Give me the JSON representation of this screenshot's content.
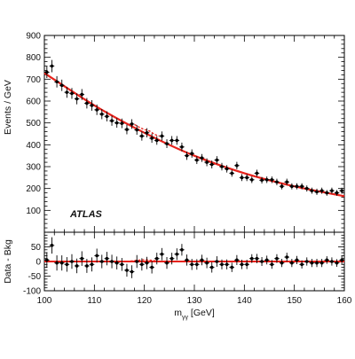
{
  "chart_data": [
    {
      "type": "scatter",
      "panel": "main",
      "atlas_label": "ATLAS",
      "xlabel_main": "m",
      "xlabel_sub": "γγ",
      "xlabel_unit": " [GeV]",
      "ylabel": "Events / GeV",
      "xlim": [
        100,
        160
      ],
      "ylim": [
        0,
        900
      ],
      "x_ticks": [
        "100",
        "110",
        "120",
        "130",
        "140",
        "150",
        "160"
      ],
      "y_ticks": [
        "100",
        "200",
        "300",
        "400",
        "500",
        "600",
        "700",
        "800",
        "900"
      ],
      "grid": false,
      "fit_curve": {
        "x": [
          100,
          110,
          120,
          130,
          140,
          150,
          160
        ],
        "y": [
          728,
          580,
          455,
          350,
          270,
          210,
          165
        ]
      },
      "signal_bump": {
        "x": [
          116.5,
          118,
          119,
          120,
          121,
          122,
          123
        ],
        "y": [
          492,
          492,
          480,
          470,
          463,
          448,
          440
        ]
      },
      "series": [
        {
          "x": [
            100.5,
            101.5,
            102.5,
            103.5,
            104.5,
            105.5,
            106.5,
            107.5,
            108.5,
            109.5,
            110.5,
            111.5,
            112.5,
            113.5,
            114.5,
            115.5,
            116.5,
            117.5,
            118.5,
            119.5,
            120.5,
            121.5,
            122.5,
            123.5,
            124.5,
            125.5,
            126.5,
            127.5,
            128.5,
            129.5,
            130.5,
            131.5,
            132.5,
            133.5,
            134.5,
            135.5,
            136.5,
            137.5,
            138.5,
            139.5,
            140.5,
            141.5,
            142.5,
            143.5,
            144.5,
            145.5,
            146.5,
            147.5,
            148.5,
            149.5,
            150.5,
            151.5,
            152.5,
            153.5,
            154.5,
            155.5,
            156.5,
            157.5,
            158.5,
            159.5
          ],
          "y": [
            732,
            760,
            688,
            672,
            640,
            635,
            610,
            630,
            590,
            580,
            560,
            540,
            530,
            510,
            500,
            498,
            470,
            495,
            468,
            440,
            455,
            430,
            420,
            440,
            405,
            420,
            420,
            390,
            350,
            360,
            330,
            340,
            320,
            310,
            330,
            300,
            290,
            270,
            305,
            250,
            250,
            240,
            270,
            238,
            240,
            240,
            230,
            210,
            230,
            210,
            210,
            210,
            200,
            190,
            185,
            190,
            180,
            190,
            180,
            190
          ],
          "err": [
            27,
            28,
            26,
            26,
            25,
            25,
            25,
            25,
            24,
            24,
            24,
            23,
            23,
            23,
            22,
            22,
            22,
            22,
            22,
            21,
            21,
            21,
            20,
            21,
            20,
            20,
            20,
            20,
            19,
            19,
            18,
            18,
            18,
            18,
            18,
            17,
            17,
            16,
            17,
            16,
            16,
            15,
            16,
            15,
            15,
            15,
            15,
            14,
            15,
            14,
            14,
            14,
            14,
            14,
            14,
            14,
            13,
            14,
            13,
            14
          ]
        }
      ]
    },
    {
      "type": "scatter",
      "panel": "residual",
      "ylabel": "Data - Bkg",
      "xlim": [
        100,
        160
      ],
      "ylim": [
        -100,
        100
      ],
      "y_ticks": [
        "50",
        "0",
        "-50",
        "-100"
      ],
      "grid": false,
      "zero_line": 0,
      "signal_bump": {
        "x": [
          116.5,
          118,
          119,
          120,
          121,
          122,
          123
        ],
        "y": [
          0,
          3,
          5,
          6,
          5,
          3,
          0
        ]
      },
      "series": [
        {
          "x": [
            100.5,
            101.5,
            102.5,
            103.5,
            104.5,
            105.5,
            106.5,
            107.5,
            108.5,
            109.5,
            110.5,
            111.5,
            112.5,
            113.5,
            114.5,
            115.5,
            116.5,
            117.5,
            118.5,
            119.5,
            120.5,
            121.5,
            122.5,
            123.5,
            124.5,
            125.5,
            126.5,
            127.5,
            128.5,
            129.5,
            130.5,
            131.5,
            132.5,
            133.5,
            134.5,
            135.5,
            136.5,
            137.5,
            138.5,
            139.5,
            140.5,
            141.5,
            142.5,
            143.5,
            144.5,
            145.5,
            146.5,
            147.5,
            148.5,
            149.5,
            150.5,
            151.5,
            152.5,
            153.5,
            154.5,
            155.5,
            156.5,
            157.5,
            158.5,
            159.5
          ],
          "y": [
            5,
            55,
            -5,
            -5,
            -10,
            0,
            -15,
            10,
            -15,
            -10,
            20,
            0,
            10,
            0,
            -5,
            -10,
            -30,
            -35,
            0,
            -10,
            -5,
            -20,
            10,
            25,
            -5,
            10,
            25,
            40,
            5,
            -10,
            -10,
            5,
            -5,
            -20,
            0,
            -10,
            -10,
            -20,
            5,
            -10,
            -10,
            10,
            10,
            0,
            5,
            -10,
            10,
            -5,
            15,
            -5,
            5,
            -10,
            0,
            -5,
            -5,
            -5,
            5,
            0,
            -5,
            5
          ],
          "err": [
            27,
            28,
            26,
            26,
            25,
            25,
            25,
            25,
            24,
            24,
            24,
            23,
            23,
            23,
            22,
            22,
            22,
            22,
            22,
            21,
            21,
            21,
            20,
            21,
            20,
            20,
            20,
            20,
            19,
            19,
            18,
            18,
            18,
            18,
            18,
            17,
            17,
            16,
            17,
            16,
            16,
            15,
            16,
            15,
            15,
            15,
            15,
            14,
            15,
            14,
            14,
            14,
            14,
            14,
            14,
            14,
            13,
            14,
            13,
            14
          ]
        }
      ]
    }
  ]
}
